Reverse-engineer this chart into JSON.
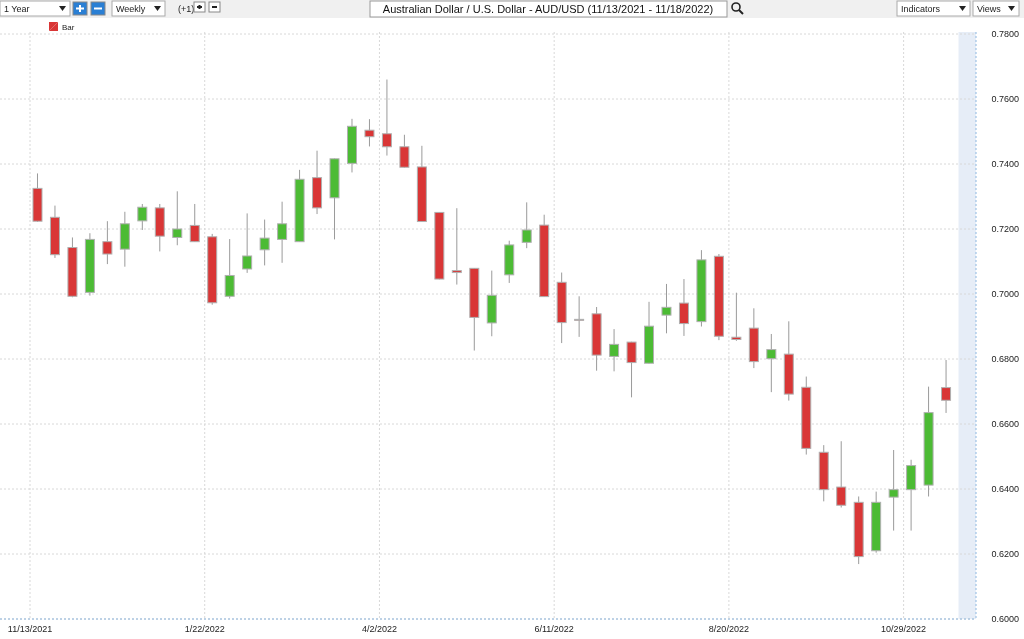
{
  "chart_data": {
    "type": "candlestick",
    "title": "Australian Dollar / U.S. Dollar - AUD/USD (11/13/2021 - 11/18/2022)",
    "annotations": [
      "1 Year",
      "Weekly",
      "(+1)",
      "Indicators",
      "Views"
    ],
    "legend": "top left",
    "grid": true,
    "xlim": [
      "2021-11-13",
      "2022-11-27"
    ],
    "xticks": [
      {
        "value": "2021-11-13",
        "label": "11/13/2021"
      },
      {
        "value": "2022-01-22",
        "label": "1/22/2022"
      },
      {
        "value": "2022-04-02",
        "label": "4/2/2022"
      },
      {
        "value": "2022-06-11",
        "label": "6/11/2022"
      },
      {
        "value": "2022-08-20",
        "label": "8/20/2022"
      },
      {
        "value": "2022-10-29",
        "label": "10/29/2022"
      }
    ],
    "ylim": [
      0.6,
      0.78
    ],
    "yticks": [
      {
        "value": 0.6,
        "label": "0.6000"
      },
      {
        "value": 0.62,
        "label": "0.6200"
      },
      {
        "value": 0.64,
        "label": "0.6400"
      },
      {
        "value": 0.66,
        "label": "0.6600"
      },
      {
        "value": 0.68,
        "label": "0.6800"
      },
      {
        "value": 0.7,
        "label": "0.7000"
      },
      {
        "value": 0.72,
        "label": "0.7200"
      },
      {
        "value": 0.74,
        "label": "0.7400"
      },
      {
        "value": 0.76,
        "label": "0.7600"
      },
      {
        "value": 0.78,
        "label": "0.7800"
      }
    ],
    "bands": [
      {
        "axis": "x",
        "from": "2022-11-20",
        "to": "2022-11-27",
        "color": "#e6edf7"
      }
    ],
    "series": [
      {
        "name": "Bar",
        "x": [
          "2021-11-16",
          "2021-11-23",
          "2021-11-30",
          "2021-12-07",
          "2021-12-14",
          "2021-12-21",
          "2021-12-28",
          "2022-01-04",
          "2022-01-11",
          "2022-01-18",
          "2022-01-25",
          "2022-02-01",
          "2022-02-08",
          "2022-02-15",
          "2022-02-22",
          "2022-03-01",
          "2022-03-08",
          "2022-03-15",
          "2022-03-22",
          "2022-03-29",
          "2022-04-05",
          "2022-04-12",
          "2022-04-19",
          "2022-04-26",
          "2022-05-03",
          "2022-05-10",
          "2022-05-17",
          "2022-05-24",
          "2022-05-31",
          "2022-06-07",
          "2022-06-14",
          "2022-06-21",
          "2022-06-28",
          "2022-07-05",
          "2022-07-12",
          "2022-07-19",
          "2022-07-26",
          "2022-08-02",
          "2022-08-09",
          "2022-08-16",
          "2022-08-23",
          "2022-08-30",
          "2022-09-06",
          "2022-09-13",
          "2022-09-20",
          "2022-09-27",
          "2022-10-04",
          "2022-10-11",
          "2022-10-18",
          "2022-10-25",
          "2022-11-01",
          "2022-11-08",
          "2022-11-15"
        ],
        "ohlc": [
          [
            0.7325,
            0.7371,
            0.7222,
            0.7224
          ],
          [
            0.7236,
            0.7272,
            0.7111,
            0.7121
          ],
          [
            0.7143,
            0.7174,
            0.699,
            0.6993
          ],
          [
            0.7005,
            0.7187,
            0.6995,
            0.7168
          ],
          [
            0.7161,
            0.7224,
            0.7092,
            0.7123
          ],
          [
            0.7138,
            0.7253,
            0.7084,
            0.7216
          ],
          [
            0.7225,
            0.7277,
            0.7197,
            0.7267
          ],
          [
            0.7265,
            0.7277,
            0.7131,
            0.7178
          ],
          [
            0.7174,
            0.7316,
            0.715,
            0.72
          ],
          [
            0.7211,
            0.7277,
            0.716,
            0.7161
          ],
          [
            0.7176,
            0.7185,
            0.6967,
            0.6973
          ],
          [
            0.6993,
            0.7169,
            0.6986,
            0.7057
          ],
          [
            0.7077,
            0.7248,
            0.7065,
            0.7117
          ],
          [
            0.7136,
            0.7229,
            0.7088,
            0.7172
          ],
          [
            0.7168,
            0.7284,
            0.7096,
            0.7216
          ],
          [
            0.7161,
            0.7382,
            0.716,
            0.7353
          ],
          [
            0.7358,
            0.7441,
            0.7246,
            0.7265
          ],
          [
            0.7296,
            0.7417,
            0.7168,
            0.7416
          ],
          [
            0.7402,
            0.7539,
            0.7374,
            0.7516
          ],
          [
            0.7504,
            0.7538,
            0.7454,
            0.7484
          ],
          [
            0.7493,
            0.766,
            0.7426,
            0.7453
          ],
          [
            0.7453,
            0.749,
            0.7389,
            0.739
          ],
          [
            0.7391,
            0.7456,
            0.7222,
            0.7223
          ],
          [
            0.7251,
            0.7252,
            0.7045,
            0.7046
          ],
          [
            0.7072,
            0.7264,
            0.7029,
            0.7066
          ],
          [
            0.7079,
            0.708,
            0.6826,
            0.6928
          ],
          [
            0.6911,
            0.7072,
            0.687,
            0.6996
          ],
          [
            0.7059,
            0.7164,
            0.7034,
            0.7151
          ],
          [
            0.7159,
            0.7282,
            0.7141,
            0.7197
          ],
          [
            0.7212,
            0.7244,
            0.6991,
            0.6992
          ],
          [
            0.7036,
            0.7066,
            0.6849,
            0.6912
          ],
          [
            0.6922,
            0.6993,
            0.6868,
            0.692
          ],
          [
            0.6939,
            0.696,
            0.6764,
            0.6812
          ],
          [
            0.6808,
            0.6892,
            0.6762,
            0.6845
          ],
          [
            0.6852,
            0.6853,
            0.6682,
            0.6789
          ],
          [
            0.6787,
            0.6976,
            0.6786,
            0.6901
          ],
          [
            0.6935,
            0.7031,
            0.6879,
            0.6959
          ],
          [
            0.6972,
            0.7046,
            0.6871,
            0.6909
          ],
          [
            0.6915,
            0.7135,
            0.69,
            0.7105
          ],
          [
            0.7116,
            0.7123,
            0.6858,
            0.687
          ],
          [
            0.6867,
            0.7004,
            0.6856,
            0.686
          ],
          [
            0.6895,
            0.6956,
            0.6772,
            0.6792
          ],
          [
            0.6801,
            0.6877,
            0.6698,
            0.6829
          ],
          [
            0.6815,
            0.6916,
            0.6672,
            0.6692
          ],
          [
            0.6713,
            0.6746,
            0.6506,
            0.6525
          ],
          [
            0.6513,
            0.6535,
            0.6362,
            0.6398
          ],
          [
            0.6406,
            0.6547,
            0.6343,
            0.635
          ],
          [
            0.6359,
            0.6377,
            0.6169,
            0.6192
          ],
          [
            0.621,
            0.6392,
            0.6204,
            0.6359
          ],
          [
            0.6375,
            0.652,
            0.6272,
            0.6398
          ],
          [
            0.6398,
            0.649,
            0.6272,
            0.6472
          ],
          [
            0.6412,
            0.6715,
            0.6377,
            0.6635
          ],
          [
            0.6712,
            0.6797,
            0.6634,
            0.6673
          ]
        ],
        "colors": [
          "#d93636",
          "#d93636",
          "#d93636",
          "#4cbb34",
          "#d93636",
          "#4cbb34",
          "#4cbb34",
          "#d93636",
          "#4cbb34",
          "#d93636",
          "#d93636",
          "#4cbb34",
          "#4cbb34",
          "#4cbb34",
          "#4cbb34",
          "#4cbb34",
          "#d93636",
          "#4cbb34",
          "#4cbb34",
          "#d93636",
          "#d93636",
          "#d93636",
          "#d93636",
          "#d93636",
          "#d93636",
          "#d93636",
          "#4cbb34",
          "#4cbb34",
          "#4cbb34",
          "#d93636",
          "#d93636",
          "#d93636",
          "#d93636",
          "#4cbb34",
          "#d93636",
          "#4cbb34",
          "#4cbb34",
          "#d93636",
          "#4cbb34",
          "#d93636",
          "#d93636",
          "#d93636",
          "#4cbb34",
          "#d93636",
          "#d93636",
          "#d93636",
          "#d93636",
          "#d93636",
          "#4cbb34",
          "#4cbb34",
          "#4cbb34",
          "#4cbb34",
          "#d93636"
        ]
      }
    ]
  }
}
